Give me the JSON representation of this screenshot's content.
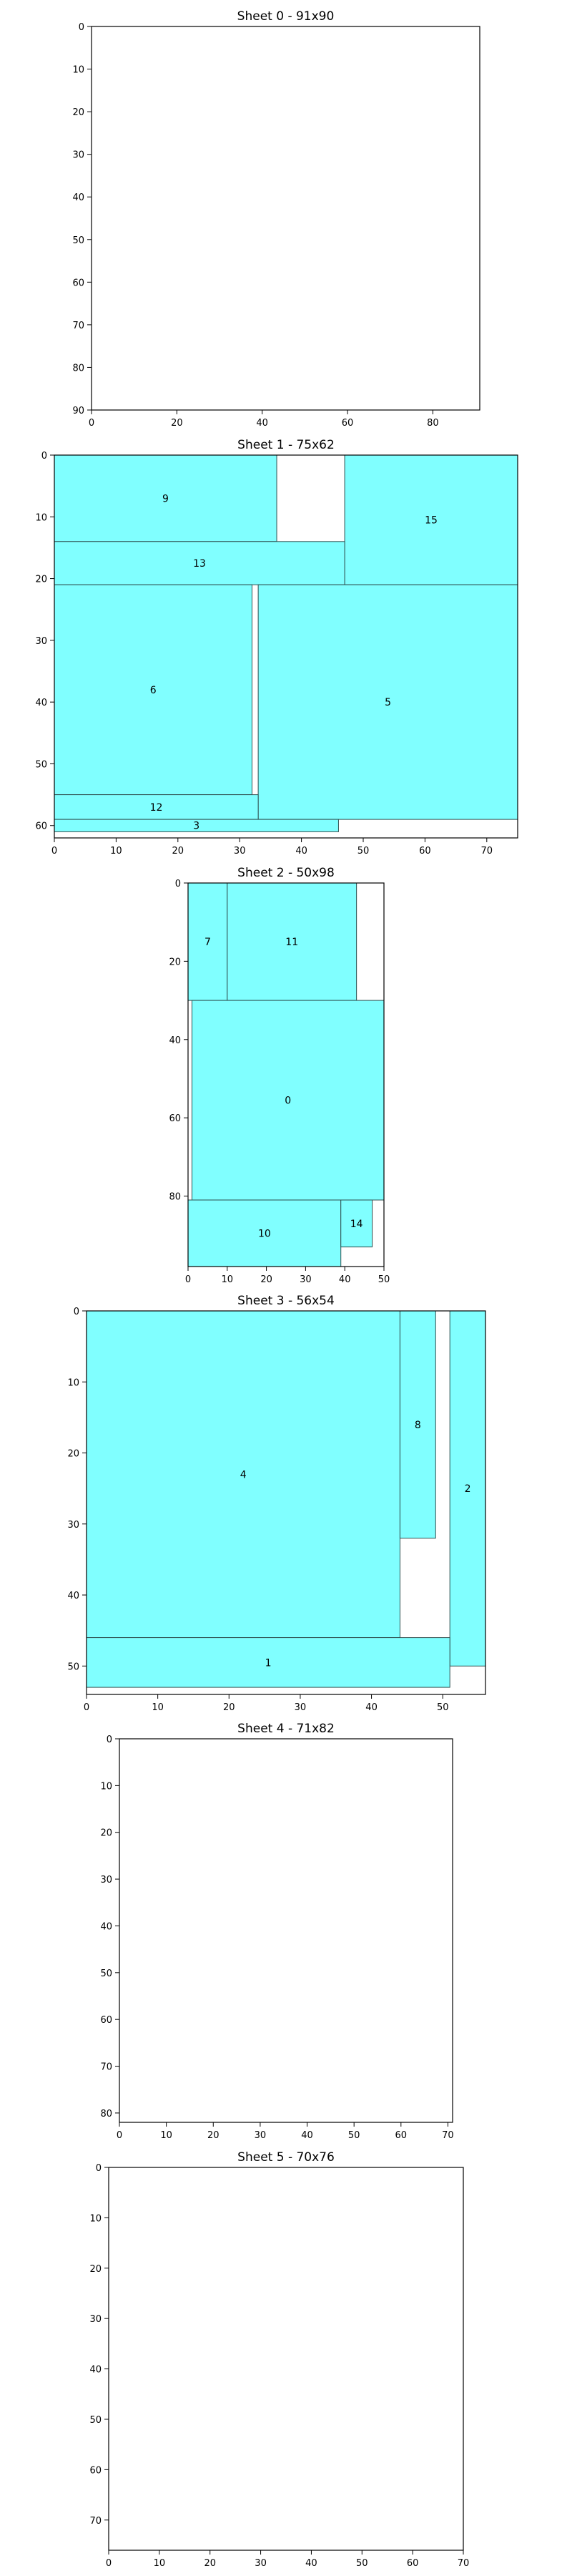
{
  "chart_data": [
    {
      "type": "rectangle-packing",
      "title": "Sheet 0 - 91x90",
      "sheet": {
        "width": 91,
        "height": 90
      },
      "xlim": [
        0,
        91
      ],
      "ylim": [
        0,
        90
      ],
      "xticks": [
        0,
        20,
        40,
        60,
        80
      ],
      "yticks": [
        0,
        10,
        20,
        30,
        40,
        50,
        60,
        70,
        80,
        90
      ],
      "pieces": []
    },
    {
      "type": "rectangle-packing",
      "title": "Sheet 1 - 75x62",
      "sheet": {
        "width": 75,
        "height": 62
      },
      "xlim": [
        0,
        75
      ],
      "ylim": [
        0,
        62
      ],
      "xticks": [
        0,
        10,
        20,
        30,
        40,
        50,
        60,
        70
      ],
      "yticks": [
        0,
        10,
        20,
        30,
        40,
        50,
        60
      ],
      "pieces": [
        {
          "id": "9",
          "x": 0,
          "y": 0,
          "w": 36,
          "h": 14
        },
        {
          "id": "15",
          "x": 47,
          "y": 0,
          "w": 28,
          "h": 21
        },
        {
          "id": "13",
          "x": 0,
          "y": 14,
          "w": 47,
          "h": 7
        },
        {
          "id": "6",
          "x": 0,
          "y": 21,
          "w": 32,
          "h": 34
        },
        {
          "id": "5",
          "x": 33,
          "y": 21,
          "w": 42,
          "h": 38
        },
        {
          "id": "12",
          "x": 0,
          "y": 55,
          "w": 33,
          "h": 4
        },
        {
          "id": "3",
          "x": 0,
          "y": 59,
          "w": 46,
          "h": 2
        }
      ]
    },
    {
      "type": "rectangle-packing",
      "title": "Sheet 2 - 50x98",
      "sheet": {
        "width": 50,
        "height": 98
      },
      "xlim": [
        0,
        50
      ],
      "ylim": [
        0,
        98
      ],
      "xticks": [
        0,
        10,
        20,
        30,
        40,
        50
      ],
      "yticks": [
        0,
        20,
        40,
        60,
        80
      ],
      "pieces": [
        {
          "id": "7",
          "x": 0,
          "y": 0,
          "w": 10,
          "h": 30
        },
        {
          "id": "11",
          "x": 10,
          "y": 0,
          "w": 33,
          "h": 30
        },
        {
          "id": "0",
          "x": 1,
          "y": 30,
          "w": 49,
          "h": 51
        },
        {
          "id": "10",
          "x": 0,
          "y": 81,
          "w": 39,
          "h": 17
        },
        {
          "id": "14",
          "x": 39,
          "y": 81,
          "w": 8,
          "h": 12
        }
      ]
    },
    {
      "type": "rectangle-packing",
      "title": "Sheet 3 - 56x54",
      "sheet": {
        "width": 56,
        "height": 54
      },
      "xlim": [
        0,
        56
      ],
      "ylim": [
        0,
        54
      ],
      "xticks": [
        0,
        10,
        20,
        30,
        40,
        50
      ],
      "yticks": [
        0,
        10,
        20,
        30,
        40,
        50
      ],
      "pieces": [
        {
          "id": "4",
          "x": 0,
          "y": 0,
          "w": 44,
          "h": 46
        },
        {
          "id": "8",
          "x": 44,
          "y": 0,
          "w": 5,
          "h": 32
        },
        {
          "id": "2",
          "x": 51,
          "y": 0,
          "w": 5,
          "h": 50
        },
        {
          "id": "1",
          "x": 0,
          "y": 46,
          "w": 51,
          "h": 7
        }
      ]
    },
    {
      "type": "rectangle-packing",
      "title": "Sheet 4 - 71x82",
      "sheet": {
        "width": 71,
        "height": 82
      },
      "xlim": [
        0,
        71
      ],
      "ylim": [
        0,
        82
      ],
      "xticks": [
        0,
        10,
        20,
        30,
        40,
        50,
        60,
        70
      ],
      "yticks": [
        0,
        10,
        20,
        30,
        40,
        50,
        60,
        70,
        80
      ],
      "pieces": []
    },
    {
      "type": "rectangle-packing",
      "title": "Sheet 5 - 70x76",
      "sheet": {
        "width": 70,
        "height": 76
      },
      "xlim": [
        0,
        70
      ],
      "ylim": [
        0,
        76
      ],
      "xticks": [
        0,
        10,
        20,
        30,
        40,
        50,
        60,
        70
      ],
      "yticks": [
        0,
        10,
        20,
        30,
        40,
        50,
        60,
        70
      ],
      "pieces": []
    }
  ],
  "colors": {
    "piece_fill": "#80ffff",
    "piece_edge": "#2f4f4f",
    "sheet_edge": "#000000"
  }
}
